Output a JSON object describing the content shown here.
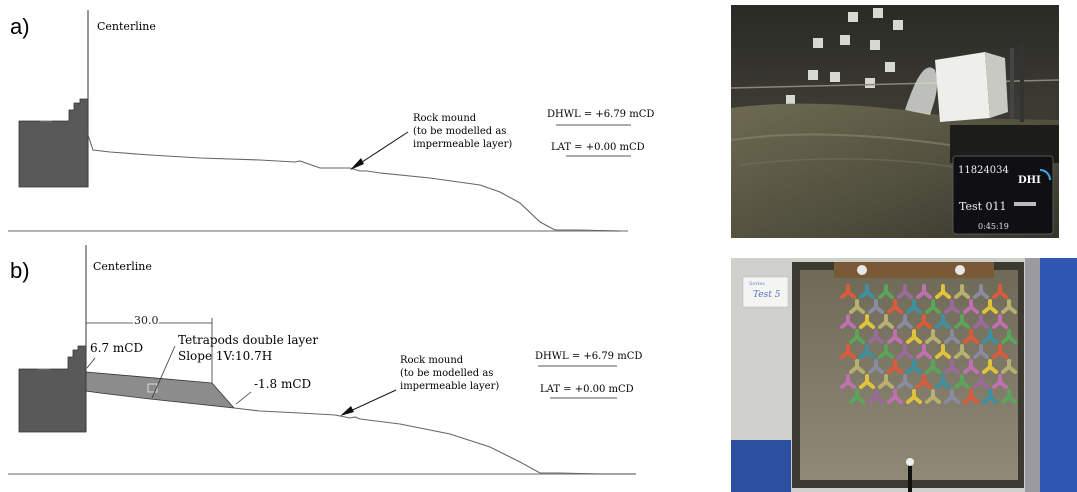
{
  "panel_a": {
    "letter": "a)",
    "centerline": "Centerline",
    "rock_mound": [
      "Rock mound",
      "(to be modelled as",
      "impermeable layer)"
    ],
    "dhwl": "DHWL = +6.79 mCD",
    "lat": "LAT = +0.00 mCD"
  },
  "panel_b": {
    "letter": "b)",
    "centerline": "Centerline",
    "dimension": "30.0",
    "crest_level": "6.7 mCD",
    "tetrapods": [
      "Tetrapods double layer",
      "Slope 1V:10.7H"
    ],
    "toe_level": "-1.8 mCD",
    "rock_mound": [
      "Rock mound",
      "(to be modelled as",
      "impermeable layer)"
    ],
    "dhwl": "DHWL = +6.79 mCD",
    "lat": "LAT = +0.00 mCD"
  },
  "photo_a": {
    "counter": "11824034",
    "logo": "DHI",
    "test": "Test 011",
    "time": "0:45:19"
  },
  "photo_b": {
    "card_small": "Series",
    "card_title": "Test 5"
  }
}
